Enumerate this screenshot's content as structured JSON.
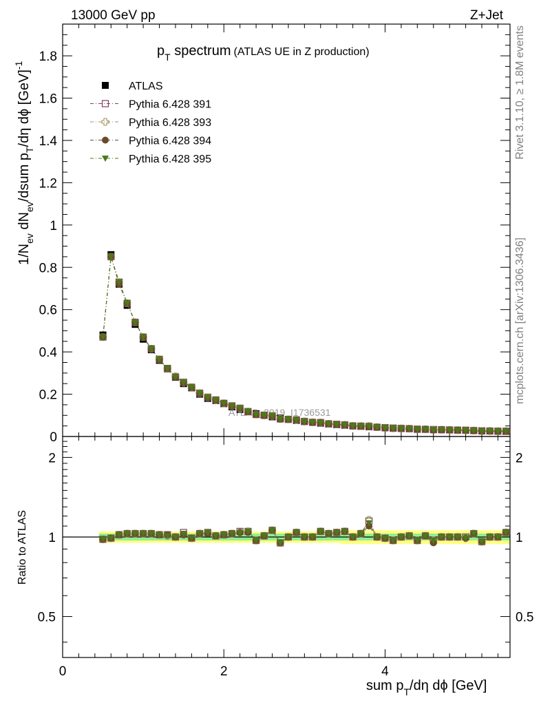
{
  "header": {
    "left": "13000 GeV pp",
    "right": "Z+Jet"
  },
  "side_labels": {
    "top": "Rivet 3.1.10, ≥ 1.8M events",
    "bottom": "mcplots.cern.ch [arXiv:1306.3436]"
  },
  "watermark": "ATLAS_2019_I1736531",
  "colors": {
    "atlas": "#000000",
    "py391": "#7f3f5f",
    "py393": "#a09060",
    "py394": "#6b4a2a",
    "py395": "#4a7a1a",
    "band_yellow": "#ffff80",
    "band_green": "#90ee90"
  },
  "chart_data": [
    {
      "type": "scatter",
      "title_main": "p",
      "title_sub": "T",
      "title_tail": " spectrum",
      "title_extra": "(ATLAS UE in Z production)",
      "ylabel_parts": [
        "1/N",
        "ev",
        " dN",
        "ev",
        "/dsum p",
        "T",
        "/dη dϕ  [GeV]",
        "-1"
      ],
      "xlim": [
        0,
        5.55
      ],
      "ylim": [
        0,
        1.95
      ],
      "yticks": [
        0,
        0.2,
        0.4,
        0.6,
        0.8,
        1,
        1.2,
        1.4,
        1.6,
        1.8
      ],
      "ytick_labels": [
        "0",
        "0.2",
        "0.4",
        "0.6",
        "0.8",
        "1",
        "1.2",
        "1.4",
        "1.6",
        "1.8"
      ],
      "x": [
        0.5,
        0.6,
        0.7,
        0.8,
        0.9,
        1.0,
        1.1,
        1.2,
        1.3,
        1.4,
        1.5,
        1.6,
        1.7,
        1.8,
        1.9,
        2.0,
        2.1,
        2.2,
        2.3,
        2.4,
        2.5,
        2.6,
        2.7,
        2.8,
        2.9,
        3.0,
        3.1,
        3.2,
        3.3,
        3.4,
        3.5,
        3.6,
        3.7,
        3.8,
        3.9,
        4.0,
        4.1,
        4.2,
        4.3,
        4.4,
        4.5,
        4.6,
        4.7,
        4.8,
        4.9,
        5.0,
        5.1,
        5.2,
        5.3,
        5.4,
        5.5
      ],
      "series": [
        {
          "name": "ATLAS",
          "marker": "filled-square",
          "values": [
            0.48,
            0.86,
            0.72,
            0.62,
            0.53,
            0.46,
            0.41,
            0.36,
            0.32,
            0.28,
            0.25,
            0.23,
            0.2,
            0.18,
            0.17,
            0.155,
            0.14,
            0.128,
            0.118,
            0.108,
            0.1,
            0.093,
            0.087,
            0.081,
            0.076,
            0.071,
            0.067,
            0.063,
            0.059,
            0.056,
            0.053,
            0.05,
            0.048,
            0.046,
            0.044,
            0.042,
            0.04,
            0.038,
            0.037,
            0.035,
            0.034,
            0.033,
            0.032,
            0.031,
            0.03,
            0.029,
            0.028,
            0.027,
            0.026,
            0.025,
            0.024
          ]
        },
        {
          "name": "Pythia 6.428 391",
          "marker": "open-square",
          "values": [
            0.47,
            0.85,
            0.73,
            0.63,
            0.54,
            0.47,
            0.415,
            0.365,
            0.322,
            0.282,
            0.257,
            0.233,
            0.205,
            0.186,
            0.173,
            0.157,
            0.145,
            0.134,
            0.117,
            0.104,
            0.101,
            0.098,
            0.083,
            0.081,
            0.079,
            0.071,
            0.067,
            0.066,
            0.06,
            0.058,
            0.055,
            0.05,
            0.049,
            0.048,
            0.044,
            0.041,
            0.039,
            0.038,
            0.037,
            0.034,
            0.034,
            0.032,
            0.032,
            0.031,
            0.03,
            0.03,
            0.028,
            0.026,
            0.026,
            0.025,
            0.025
          ]
        },
        {
          "name": "Pythia 6.428 393",
          "marker": "open-cross",
          "values": [
            0.47,
            0.85,
            0.73,
            0.63,
            0.54,
            0.47,
            0.415,
            0.365,
            0.32,
            0.284,
            0.255,
            0.233,
            0.205,
            0.185,
            0.172,
            0.157,
            0.144,
            0.132,
            0.118,
            0.104,
            0.1,
            0.097,
            0.083,
            0.081,
            0.078,
            0.071,
            0.067,
            0.066,
            0.06,
            0.057,
            0.055,
            0.05,
            0.049,
            0.049,
            0.044,
            0.041,
            0.039,
            0.038,
            0.037,
            0.034,
            0.034,
            0.032,
            0.032,
            0.031,
            0.03,
            0.029,
            0.028,
            0.026,
            0.026,
            0.025,
            0.025
          ]
        },
        {
          "name": "Pythia 6.428 394",
          "marker": "filled-circle",
          "values": [
            0.47,
            0.85,
            0.72,
            0.63,
            0.54,
            0.47,
            0.415,
            0.364,
            0.322,
            0.281,
            0.255,
            0.232,
            0.204,
            0.184,
            0.172,
            0.157,
            0.144,
            0.133,
            0.117,
            0.104,
            0.1,
            0.097,
            0.082,
            0.081,
            0.079,
            0.071,
            0.067,
            0.066,
            0.06,
            0.057,
            0.055,
            0.05,
            0.049,
            0.048,
            0.044,
            0.041,
            0.039,
            0.038,
            0.037,
            0.034,
            0.034,
            0.031,
            0.032,
            0.031,
            0.03,
            0.029,
            0.028,
            0.026,
            0.026,
            0.025,
            0.025
          ]
        },
        {
          "name": "Pythia 6.428 395",
          "marker": "filled-triangle-down",
          "values": [
            0.47,
            0.85,
            0.73,
            0.63,
            0.54,
            0.47,
            0.415,
            0.364,
            0.321,
            0.282,
            0.256,
            0.233,
            0.205,
            0.185,
            0.172,
            0.157,
            0.145,
            0.133,
            0.118,
            0.104,
            0.1,
            0.098,
            0.083,
            0.081,
            0.078,
            0.071,
            0.067,
            0.066,
            0.06,
            0.057,
            0.055,
            0.05,
            0.049,
            0.049,
            0.044,
            0.041,
            0.039,
            0.038,
            0.037,
            0.034,
            0.034,
            0.032,
            0.032,
            0.031,
            0.03,
            0.029,
            0.028,
            0.026,
            0.026,
            0.025,
            0.025
          ]
        }
      ],
      "legend_position": "top-left"
    },
    {
      "type": "scatter",
      "ylabel": "Ratio to ATLAS",
      "xlabel_parts": [
        "sum p",
        "T",
        "/dη dϕ [GeV]"
      ],
      "xlim": [
        0,
        5.55
      ],
      "ylim": [
        0.35,
        2.4
      ],
      "ytick_labels_left": [
        "2",
        "1",
        "0.5"
      ],
      "ytick_labels_right": [
        "2",
        "1",
        "0.5"
      ],
      "ytick_values": [
        2,
        1,
        0.5
      ],
      "xticks": [
        0,
        2,
        4
      ],
      "xtick_labels": [
        "0",
        "2",
        "4"
      ],
      "reference_line": 1,
      "band_green_halfwidth": [
        0.03,
        0.03,
        0.03,
        0.03,
        0.03,
        0.03,
        0.03,
        0.03,
        0.03,
        0.03,
        0.03,
        0.03,
        0.03,
        0.03,
        0.03,
        0.03,
        0.03,
        0.03,
        0.03,
        0.03,
        0.03,
        0.03,
        0.03,
        0.03,
        0.03,
        0.03,
        0.03,
        0.03,
        0.03,
        0.03,
        0.03,
        0.03,
        0.03,
        0.03,
        0.03,
        0.03,
        0.03,
        0.03,
        0.03,
        0.03,
        0.03,
        0.03,
        0.03,
        0.03,
        0.03,
        0.03,
        0.03,
        0.03,
        0.03,
        0.03,
        0.03
      ],
      "band_yellow_halfwidth": [
        0.05,
        0.05,
        0.05,
        0.05,
        0.05,
        0.05,
        0.05,
        0.05,
        0.05,
        0.05,
        0.05,
        0.05,
        0.05,
        0.05,
        0.05,
        0.05,
        0.05,
        0.05,
        0.05,
        0.05,
        0.05,
        0.05,
        0.05,
        0.05,
        0.05,
        0.05,
        0.05,
        0.05,
        0.05,
        0.05,
        0.06,
        0.06,
        0.06,
        0.06,
        0.06,
        0.06,
        0.06,
        0.06,
        0.06,
        0.06,
        0.06,
        0.06,
        0.06,
        0.06,
        0.06,
        0.06,
        0.06,
        0.06,
        0.06,
        0.06,
        0.06
      ],
      "series": [
        {
          "name": "Pythia 6.428 391",
          "values": [
            0.98,
            0.99,
            1.02,
            1.03,
            1.03,
            1.03,
            1.03,
            1.02,
            1.02,
            1.0,
            1.04,
            0.99,
            1.03,
            1.04,
            1.01,
            1.02,
            1.03,
            1.05,
            1.05,
            0.97,
            1.01,
            1.06,
            0.95,
            1.0,
            1.04,
            1.0,
            1.0,
            1.05,
            1.03,
            1.04,
            1.05,
            1.0,
            1.03,
            1.15,
            1.0,
            0.99,
            0.97,
            1.0,
            1.01,
            0.97,
            1.01,
            0.97,
            1.0,
            1.0,
            1.0,
            1.0,
            1.03,
            0.96,
            1.0,
            1.0,
            1.04
          ]
        },
        {
          "name": "Pythia 6.428 393",
          "values": [
            0.98,
            0.99,
            1.02,
            1.03,
            1.03,
            1.03,
            1.03,
            1.02,
            1.01,
            1.0,
            1.02,
            0.99,
            1.03,
            1.04,
            1.01,
            1.02,
            1.03,
            1.04,
            1.05,
            0.97,
            1.01,
            1.06,
            0.95,
            1.0,
            1.04,
            1.0,
            1.0,
            1.05,
            1.03,
            1.04,
            1.05,
            1.0,
            1.03,
            1.16,
            1.0,
            0.99,
            0.97,
            1.0,
            1.01,
            0.97,
            1.01,
            0.97,
            1.0,
            1.0,
            1.0,
            0.99,
            1.03,
            0.96,
            1.0,
            1.0,
            1.04
          ]
        },
        {
          "name": "Pythia 6.428 394",
          "values": [
            0.98,
            0.99,
            1.02,
            1.03,
            1.03,
            1.03,
            1.03,
            1.02,
            1.02,
            1.0,
            1.02,
            0.99,
            1.03,
            1.03,
            1.01,
            1.02,
            1.03,
            1.04,
            1.04,
            0.97,
            1.01,
            1.06,
            0.95,
            1.0,
            1.04,
            1.0,
            1.0,
            1.05,
            1.03,
            1.04,
            1.05,
            1.0,
            1.03,
            1.1,
            1.0,
            0.99,
            0.97,
            1.0,
            1.01,
            0.97,
            1.01,
            0.95,
            1.0,
            1.0,
            1.0,
            0.99,
            1.03,
            0.96,
            1.0,
            1.0,
            1.04
          ]
        },
        {
          "name": "Pythia 6.428 395",
          "values": [
            0.98,
            0.99,
            1.02,
            1.03,
            1.03,
            1.03,
            1.03,
            1.02,
            1.01,
            1.0,
            1.03,
            0.99,
            1.03,
            1.04,
            1.01,
            1.02,
            1.03,
            1.04,
            1.05,
            0.97,
            1.01,
            1.06,
            0.95,
            1.0,
            1.04,
            1.0,
            1.0,
            1.05,
            1.03,
            1.04,
            1.05,
            1.0,
            1.03,
            1.13,
            1.0,
            0.99,
            0.97,
            1.0,
            1.01,
            0.97,
            1.01,
            0.97,
            1.0,
            1.0,
            1.0,
            0.99,
            1.03,
            0.96,
            1.0,
            1.0,
            1.04
          ]
        }
      ]
    }
  ]
}
